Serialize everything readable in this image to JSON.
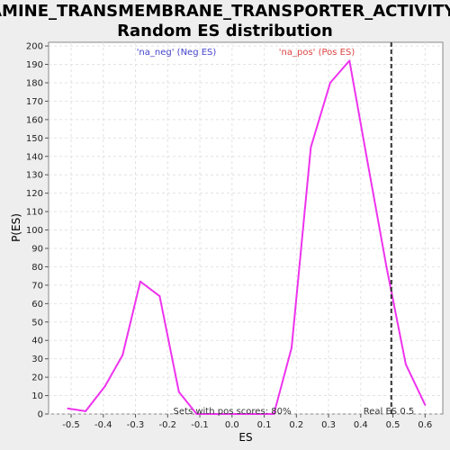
{
  "chart_data": {
    "type": "line",
    "title": "AMINE_TRANSMEMBRANE_TRANSPORTER_ACTIVITY: Random ES distribution",
    "title_lines": [
      "AMINE_TRANSMEMBRANE_TRANSPORTER_ACTIVITY:",
      "Random ES distribution"
    ],
    "xlabel": "ES",
    "ylabel": "P(ES)",
    "xlim": [
      -0.57,
      0.655
    ],
    "ylim": [
      0,
      202
    ],
    "x_ticks": [
      "-0.5",
      "-0.4",
      "-0.3",
      "-0.2",
      "-0.1",
      "0.0",
      "0.1",
      "0.2",
      "0.3",
      "0.4",
      "0.5",
      "0.6"
    ],
    "y_ticks": [
      "0",
      "10",
      "20",
      "30",
      "40",
      "50",
      "60",
      "70",
      "80",
      "90",
      "100",
      "110",
      "120",
      "130",
      "140",
      "150",
      "160",
      "170",
      "180",
      "190",
      "200"
    ],
    "grid": true,
    "series": [
      {
        "color": "#ee33ee",
        "x": [
          -0.51,
          -0.455,
          -0.395,
          -0.34,
          -0.285,
          -0.225,
          -0.165,
          -0.11,
          -0.05,
          0.01,
          0.065,
          0.13,
          0.185,
          0.245,
          0.305,
          0.365,
          0.42,
          0.48,
          0.54,
          0.6
        ],
        "y": [
          3,
          1.5,
          15,
          32,
          72,
          64,
          12,
          0,
          0,
          0,
          0,
          0,
          36,
          145,
          180,
          192,
          138,
          80,
          27,
          5
        ]
      }
    ],
    "real_es": {
      "x": 0.495,
      "label": "Real ES 0.5",
      "color": "#333333"
    },
    "annotations": {
      "neg": {
        "text": "'na_neg' (Neg ES)",
        "color": "#4444cc"
      },
      "pos": {
        "text": "'na_pos' (Pos ES)",
        "color": "#dd4444"
      },
      "sets": {
        "text": "Sets with pos scores: 80%",
        "color": "#333333"
      }
    }
  }
}
